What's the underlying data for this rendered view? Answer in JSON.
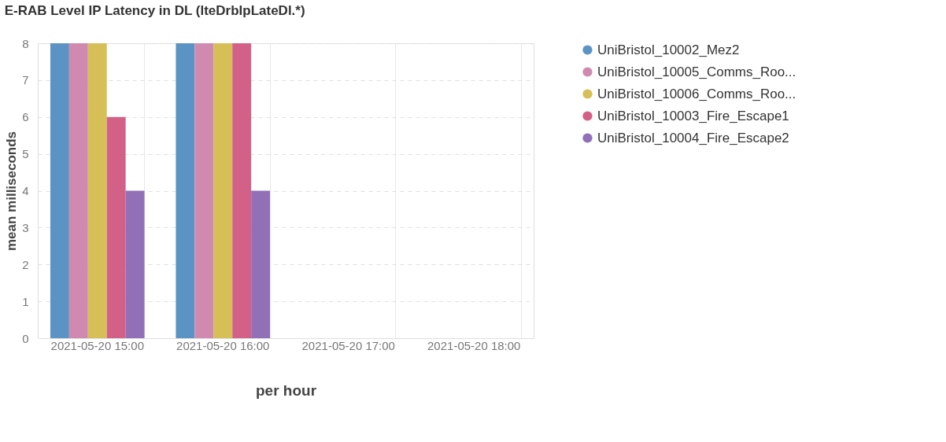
{
  "chart_data": {
    "type": "bar",
    "title": "E-RAB Level IP Latency in DL (lteDrbIpLateDl.*)",
    "xlabel": "per hour",
    "ylabel": "mean milliseconds",
    "categories": [
      "2021-05-20 15:00",
      "2021-05-20 16:00",
      "2021-05-20 17:00",
      "2021-05-20 18:00"
    ],
    "series": [
      {
        "name": "UniBristol_10002_Mez2",
        "color": "#5b93c4",
        "values": [
          8,
          8,
          null,
          null
        ]
      },
      {
        "name": "UniBristol_10005_Comms_Roo...",
        "color": "#d08ab0",
        "values": [
          8,
          8,
          null,
          null
        ]
      },
      {
        "name": "UniBristol_10006_Comms_Roo...",
        "color": "#d6bf57",
        "values": [
          8,
          8,
          null,
          null
        ]
      },
      {
        "name": "UniBristol_10003_Fire_Escape1",
        "color": "#d36086",
        "values": [
          6,
          8,
          null,
          null
        ]
      },
      {
        "name": "UniBristol_10004_Fire_Escape2",
        "color": "#9170b8",
        "values": [
          4,
          4,
          null,
          null
        ]
      }
    ],
    "ylim": [
      0,
      8
    ],
    "yticks": [
      0,
      1,
      2,
      3,
      4,
      5,
      6,
      7,
      8
    ],
    "grid": true,
    "legend": "right"
  }
}
